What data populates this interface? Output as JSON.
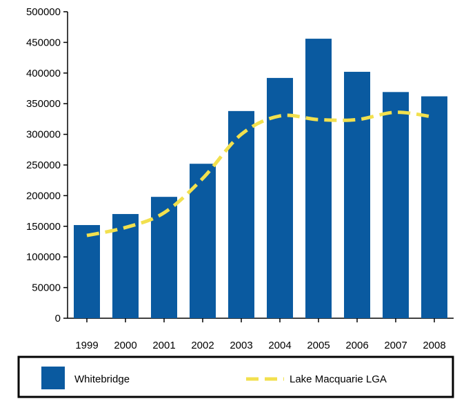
{
  "chart_data": {
    "type": "bar",
    "title": "",
    "xlabel": "",
    "ylabel": "",
    "categories": [
      "1999",
      "2000",
      "2001",
      "2002",
      "2003",
      "2004",
      "2005",
      "2006",
      "2007",
      "2008"
    ],
    "ylim": [
      0,
      500000
    ],
    "yticks": [
      "0",
      "50000",
      "100000",
      "150000",
      "200000",
      "250000",
      "300000",
      "350000",
      "400000",
      "450000",
      "500000"
    ],
    "grid": false,
    "legend_position": "bottom",
    "series": [
      {
        "name": "Whitebridge",
        "type": "bar",
        "color": "#0a5aa0",
        "values": [
          152000,
          170000,
          198000,
          252000,
          338000,
          392000,
          456000,
          402000,
          369000,
          362000
        ]
      },
      {
        "name": "Lake Macquarie LGA",
        "type": "line",
        "style": "dashed",
        "color": "#f2e04e",
        "values": [
          135000,
          148000,
          172000,
          228000,
          300000,
          330000,
          324000,
          324000,
          336000,
          328000
        ]
      }
    ]
  }
}
